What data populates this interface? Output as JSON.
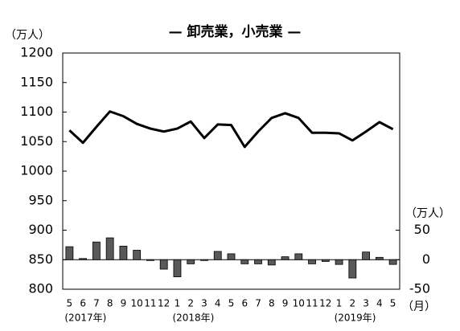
{
  "chart_data": {
    "type": "bar-line",
    "title": "— 卸売業，小売業 —",
    "y_unit": "（万人）",
    "y2_unit": "（万人）",
    "x_unit": "（月）",
    "categories": [
      "5",
      "6",
      "7",
      "8",
      "9",
      "10",
      "11",
      "12",
      "1",
      "2",
      "3",
      "4",
      "5",
      "6",
      "7",
      "8",
      "9",
      "10",
      "11",
      "12",
      "1",
      "2",
      "3",
      "4",
      "5"
    ],
    "category_groups": [
      "(2017年)",
      null,
      null,
      null,
      null,
      null,
      null,
      null,
      "(2018年)",
      null,
      null,
      null,
      null,
      null,
      null,
      null,
      null,
      null,
      null,
      null,
      "(2019年)",
      null,
      null,
      null,
      null
    ],
    "series": [
      {
        "type": "line",
        "color": "#000000",
        "values": [
          1069,
          1048,
          1075,
          1101,
          1093,
          1080,
          1072,
          1067,
          1072,
          1084,
          1056,
          1079,
          1078,
          1041,
          1067,
          1090,
          1098,
          1090,
          1065,
          1065,
          1064,
          1052,
          1067,
          1083,
          1071
        ]
      },
      {
        "type": "bar",
        "axis": "y2",
        "color": "#595959",
        "values": [
          22,
          2,
          30,
          37,
          23,
          16,
          -1,
          -16,
          -29,
          -7,
          -1,
          14,
          10,
          -7,
          -7,
          -9,
          5,
          10,
          -7,
          -3,
          -8,
          -31,
          13,
          4,
          -8
        ]
      }
    ],
    "ylim": [
      800,
      1200
    ],
    "yticks": [
      800,
      850,
      900,
      950,
      1000,
      1050,
      1100,
      1150,
      1200
    ],
    "y2lim": [
      -50,
      350
    ],
    "y2ticks": [
      -50,
      0,
      50
    ]
  }
}
